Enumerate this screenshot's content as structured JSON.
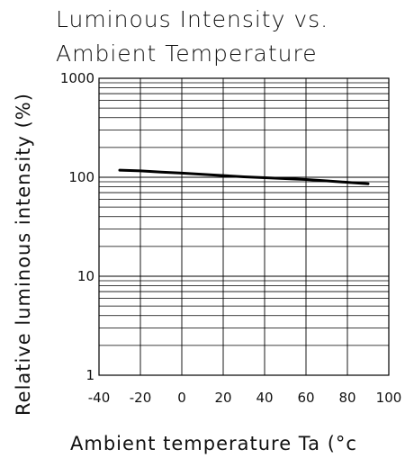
{
  "chart_data": {
    "type": "line",
    "title": "Luminous Intensity vs.",
    "subtitle": "Ambient Temperature",
    "xlabel": "Ambient temperature Ta (°c",
    "ylabel": "Relative luminous intensity (%)",
    "xlim": [
      -40,
      100
    ],
    "ylim": [
      1,
      1000
    ],
    "yscale": "log",
    "grid": true,
    "x_ticks": [
      -40,
      -20,
      0,
      20,
      40,
      60,
      80,
      100
    ],
    "x_tick_labels": [
      "-40",
      "-20",
      "0",
      "20",
      "40",
      "60",
      "80",
      "100"
    ],
    "y_ticks": [
      1,
      10,
      100,
      1000
    ],
    "y_tick_labels": [
      "1",
      "10",
      "100",
      "1000"
    ],
    "series": [
      {
        "x": [
          -30,
          -20,
          -10,
          0,
          10,
          20,
          30,
          40,
          50,
          60,
          70,
          80,
          90
        ],
        "values": [
          118,
          116,
          113,
          110,
          107,
          104,
          101,
          99,
          97,
          95,
          92,
          89,
          86
        ],
        "color": "#000000"
      }
    ]
  }
}
